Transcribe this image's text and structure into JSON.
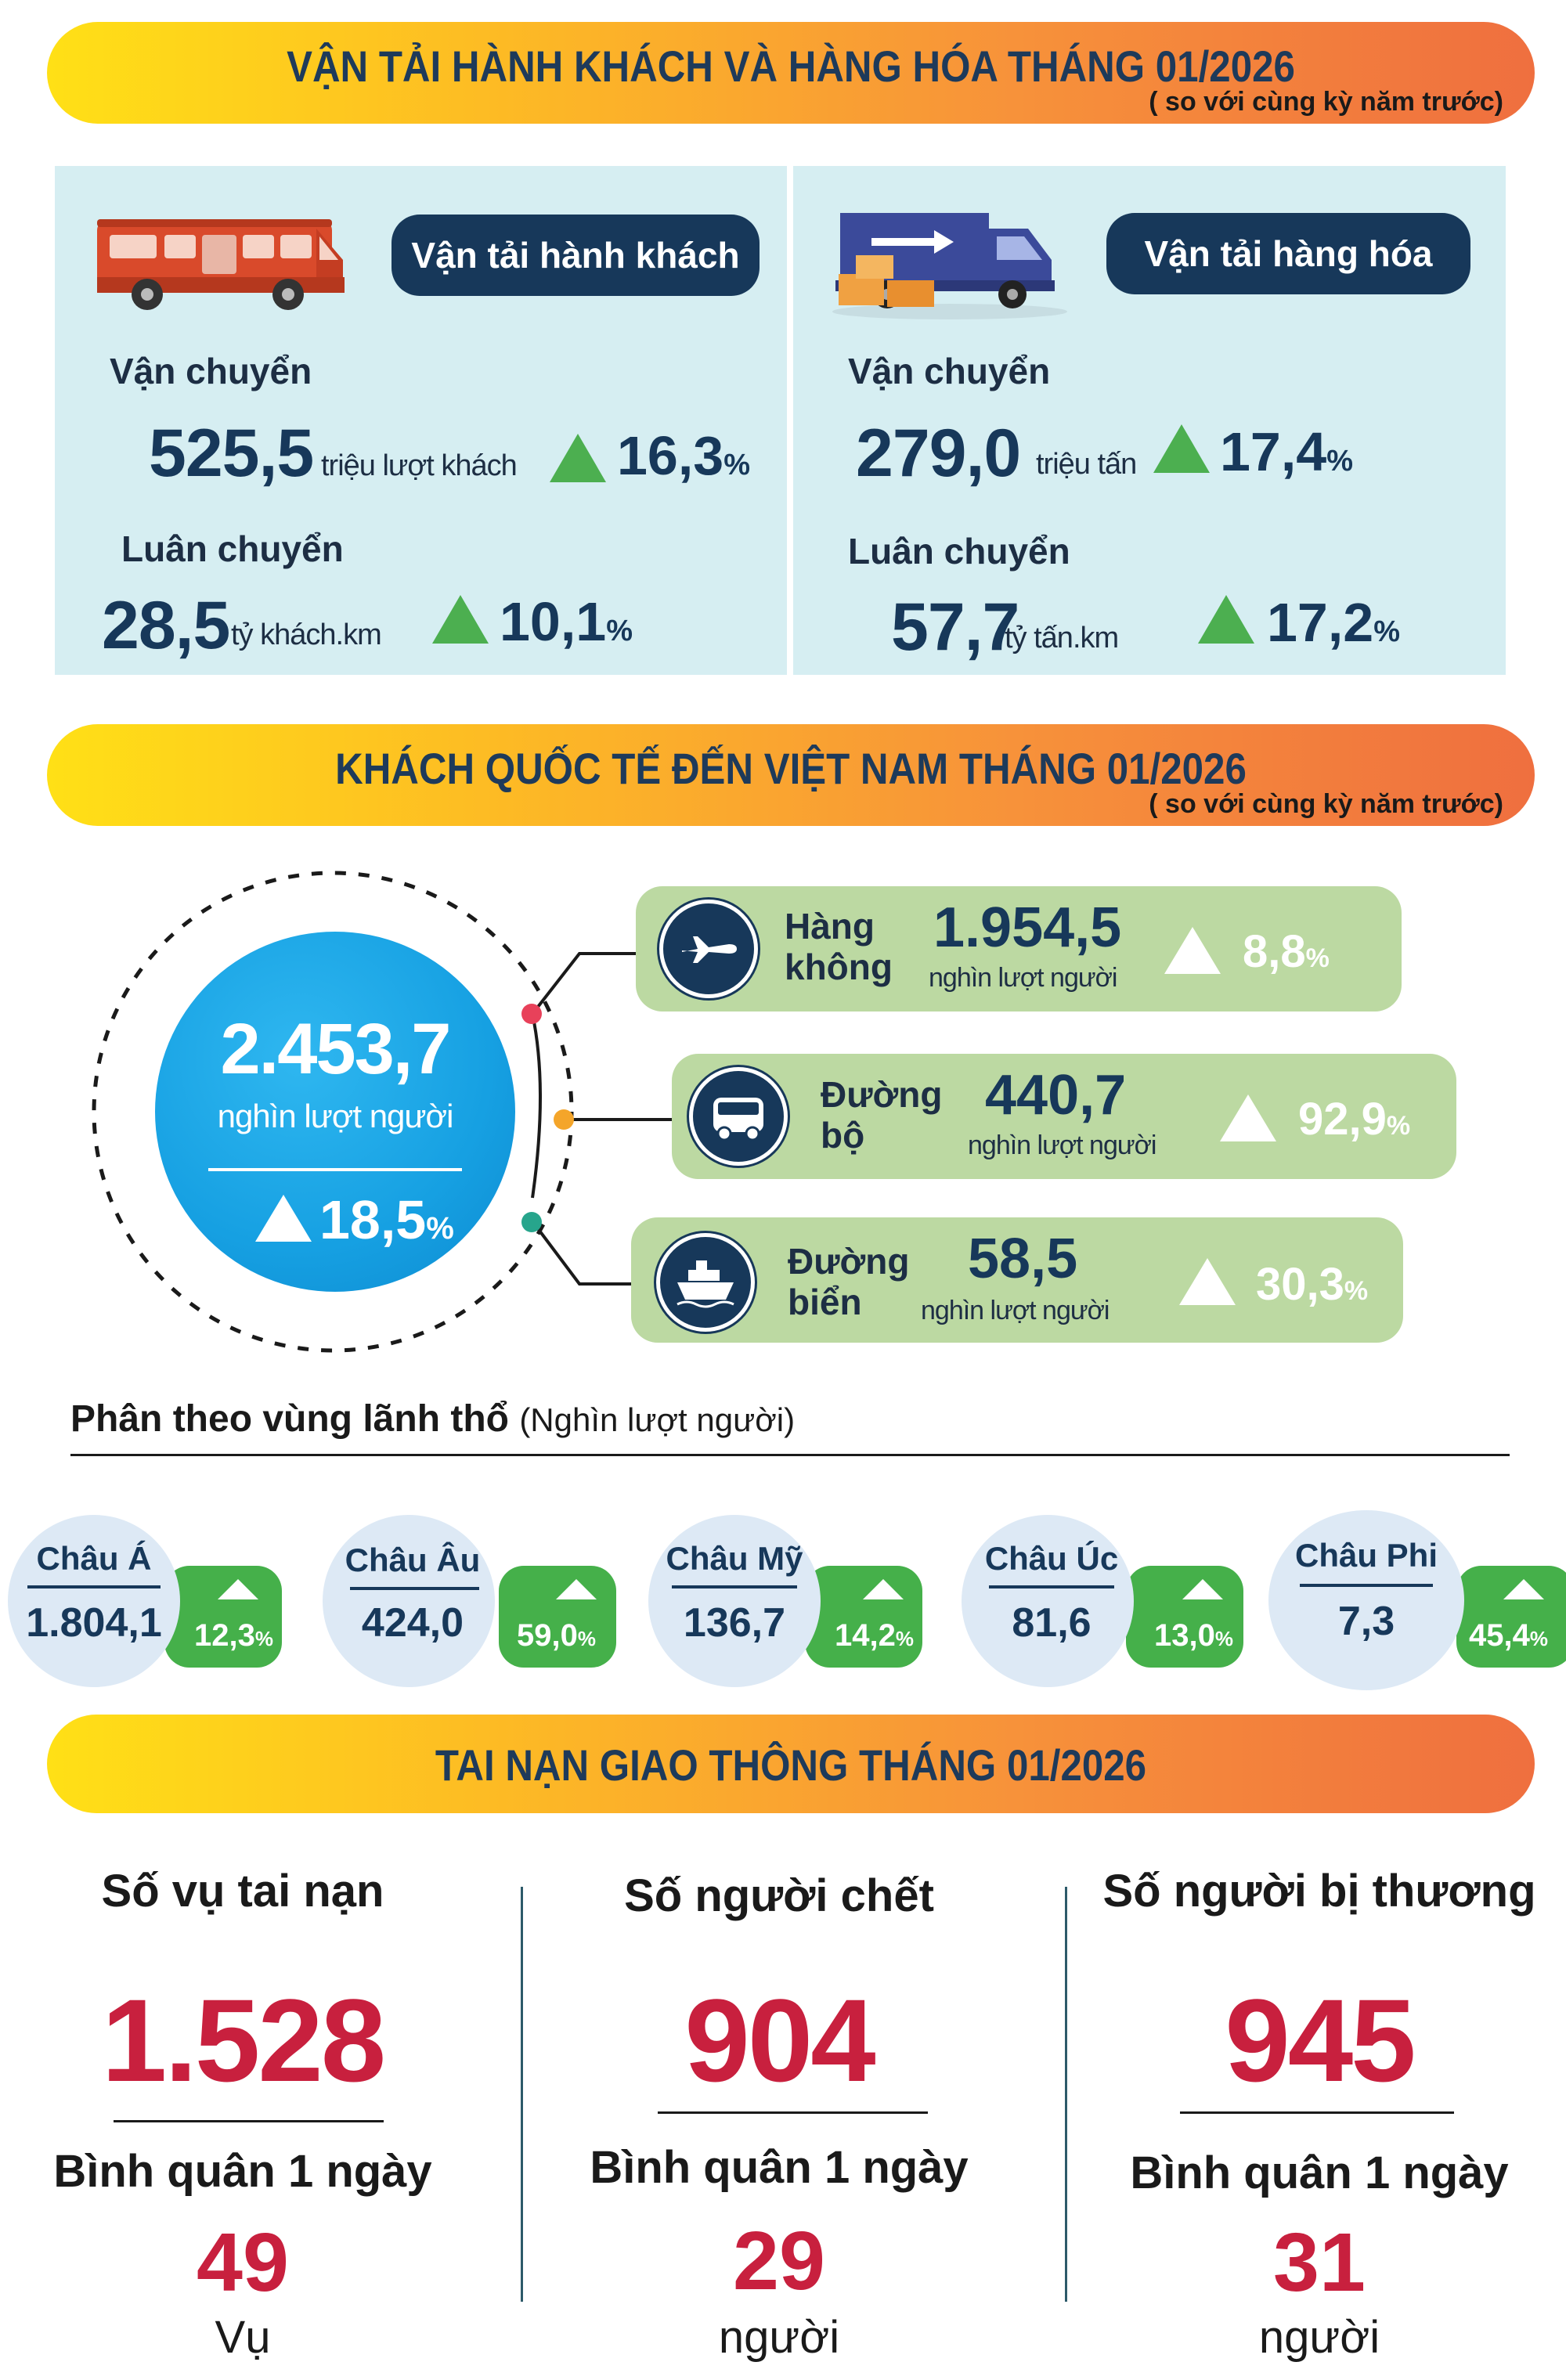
{
  "colors": {
    "navy": "#17385a",
    "panel": "#d6eef2",
    "green": "#4caf50",
    "sage": "#bcd9a2",
    "red": "#c8203e",
    "banner_start": "#ffe016",
    "banner_end": "#ef6f3f",
    "circle_blue": "#18a3e6"
  },
  "section1": {
    "title": "VẬN TẢI HÀNH KHÁCH VÀ HÀNG HÓA THÁNG 01/2026",
    "subtitle": "( so với cùng kỳ năm trước)",
    "passenger": {
      "icon": "bus-icon",
      "label": "Vận tải hành khách",
      "transport_label": "Vận chuyển",
      "transport_value": "525,5",
      "transport_unit": "triệu lượt khách",
      "transport_pct": "16,3",
      "rotation_label": "Luân chuyển",
      "rotation_value": "28,5",
      "rotation_unit": "tỷ khách.km",
      "rotation_pct": "10,1",
      "pct_sign": "%"
    },
    "freight": {
      "icon": "truck-icon",
      "label": "Vận tải hàng hóa",
      "transport_label": "Vận chuyển",
      "transport_value": "279,0",
      "transport_unit": "triệu tấn",
      "transport_pct": "17,4",
      "rotation_label": "Luân chuyển",
      "rotation_value": "57,7",
      "rotation_unit": "tỷ tấn.km",
      "rotation_pct": "17,2",
      "pct_sign": "%"
    }
  },
  "section2": {
    "title": "KHÁCH QUỐC TẾ ĐẾN VIỆT NAM THÁNG 01/2026",
    "subtitle": "( so với cùng kỳ năm trước)",
    "total": {
      "value": "2.453,7",
      "unit": "nghìn lượt người",
      "pct": "18,5",
      "pct_sign": "%"
    },
    "modes": [
      {
        "icon": "airplane-icon",
        "name_line1": "Hàng",
        "name_line2": "không",
        "value": "1.954,5",
        "unit": "nghìn lượt người",
        "pct": "8,8",
        "pct_sign": "%"
      },
      {
        "icon": "van-icon",
        "name_line1": "Đường",
        "name_line2": "bộ",
        "value": "440,7",
        "unit": "nghìn lượt người",
        "pct": "92,9",
        "pct_sign": "%"
      },
      {
        "icon": "ship-icon",
        "name_line1": "Đường",
        "name_line2": "biển",
        "value": "58,5",
        "unit": "nghìn lượt người",
        "pct": "30,3",
        "pct_sign": "%"
      }
    ],
    "region_heading": "Phân theo vùng lãnh thổ",
    "region_unit": "(Nghìn lượt người)",
    "regions": [
      {
        "name": "Châu Á",
        "value": "1.804,1",
        "pct": "12,3",
        "pct_sign": "%"
      },
      {
        "name": "Châu Âu",
        "value": "424,0",
        "pct": "59,0",
        "pct_sign": "%"
      },
      {
        "name": "Châu Mỹ",
        "value": "136,7",
        "pct": "14,2",
        "pct_sign": "%"
      },
      {
        "name": "Châu Úc",
        "value": "81,6",
        "pct": "13,0",
        "pct_sign": "%"
      },
      {
        "name": "Châu Phi",
        "value": "7,3",
        "pct": "45,4",
        "pct_sign": "%"
      }
    ]
  },
  "section3": {
    "title": "TAI NẠN GIAO THÔNG THÁNG 01/2026",
    "columns": [
      {
        "heading": "Số vụ tai nạn",
        "value": "1.528",
        "avg_label": "Bình quân 1 ngày",
        "avg_value": "49",
        "avg_unit": "Vụ"
      },
      {
        "heading": "Số người chết",
        "value": "904",
        "avg_label": "Bình quân 1 ngày",
        "avg_value": "29",
        "avg_unit": "người"
      },
      {
        "heading": "Số người bị thương",
        "value": "945",
        "avg_label": "Bình quân 1 ngày",
        "avg_value": "31",
        "avg_unit": "người"
      }
    ]
  }
}
